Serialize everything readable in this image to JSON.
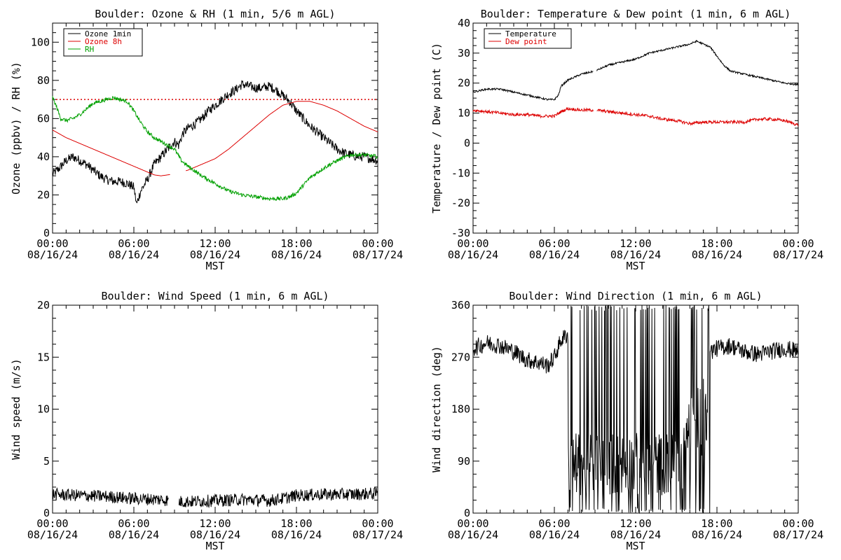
{
  "xlabel": "MST",
  "chart_data": [
    {
      "id": "ozone",
      "type": "line",
      "title": "Boulder: Ozone & RH (1 min, 5/6 m AGL)",
      "ylabel": "Ozone (ppbv) / RH (%)",
      "xlabel": "MST",
      "ylim": [
        0,
        110
      ],
      "yticks": [
        0,
        20,
        40,
        60,
        80,
        100
      ],
      "x_ticks": [
        {
          "time": "00:00",
          "date": "08/16/24"
        },
        {
          "time": "06:00",
          "date": "08/16/24"
        },
        {
          "time": "12:00",
          "date": "08/16/24"
        },
        {
          "time": "18:00",
          "date": "08/16/24"
        },
        {
          "time": "00:00",
          "date": "08/17/24"
        }
      ],
      "xlim_hours": [
        0,
        24
      ],
      "legend": "top-left",
      "reference_line": {
        "y": 70,
        "color": "#dd0000",
        "style": "dotted"
      },
      "series": [
        {
          "name": "Ozone 1min",
          "color": "#000000",
          "noise": 2.5,
          "x": [
            0,
            0.5,
            1,
            1.5,
            2,
            2.5,
            3,
            3.5,
            4,
            4.5,
            5,
            5.5,
            6,
            6.2,
            6.5,
            7,
            7.5,
            8,
            8.5,
            9,
            9.3,
            9.6,
            10,
            10.5,
            11,
            11.5,
            12,
            12.5,
            13,
            13.5,
            14,
            14.5,
            15,
            15.5,
            16,
            16.5,
            17,
            17.5,
            18,
            18.5,
            19,
            19.5,
            20,
            20.5,
            21,
            21.5,
            22,
            22.5,
            23,
            23.5,
            24
          ],
          "y": [
            31,
            34,
            38,
            40,
            38,
            36,
            33,
            30,
            28,
            27,
            27,
            26,
            24,
            15,
            22,
            28,
            36,
            40,
            44,
            48,
            46,
            52,
            55,
            57,
            60,
            64,
            67,
            70,
            73,
            75,
            78,
            77,
            76,
            76,
            77,
            75,
            72,
            69,
            64,
            60,
            56,
            53,
            50,
            47,
            44,
            42,
            41,
            40,
            40,
            39,
            38
          ]
        },
        {
          "name": "Ozone 8h",
          "color": "#dd0000",
          "noise": 0,
          "x": [
            0,
            1,
            2,
            3,
            4,
            5,
            6,
            7,
            7.5,
            8,
            9,
            10,
            11,
            12,
            13,
            14,
            15,
            16,
            17,
            18,
            19,
            20,
            21,
            22,
            23,
            24
          ],
          "y": [
            54,
            50,
            47,
            44,
            41,
            38,
            35,
            32,
            30.5,
            30,
            31,
            33,
            36,
            39,
            44,
            50,
            56,
            62,
            67,
            69,
            69,
            67,
            64,
            60,
            56,
            53
          ]
        },
        {
          "name": "RH",
          "color": "#00a000",
          "noise": 1,
          "x": [
            0,
            0.3,
            0.6,
            1,
            1.5,
            2,
            2.5,
            3,
            3.5,
            4,
            4.5,
            5,
            5.5,
            6,
            6.5,
            7,
            7.5,
            8,
            8.5,
            9,
            9.5,
            10,
            11,
            12,
            13,
            14,
            15,
            16,
            17,
            17.5,
            18,
            18.5,
            19,
            20,
            21,
            22,
            23,
            24
          ],
          "y": [
            71,
            66,
            60,
            59,
            60,
            62,
            65,
            68,
            69,
            70,
            71,
            70,
            69,
            64,
            58,
            53,
            50,
            48,
            46,
            44,
            38,
            35,
            30,
            26,
            22,
            20,
            19,
            18,
            18,
            19,
            21,
            25,
            29,
            34,
            38,
            41,
            41,
            40
          ]
        }
      ]
    },
    {
      "id": "temp",
      "type": "line",
      "title": "Boulder: Temperature & Dew point (1 min, 6 m AGL)",
      "ylabel": "Temperature / Dew point (C)",
      "xlabel": "MST",
      "ylim": [
        -30,
        40
      ],
      "yticks": [
        -30,
        -20,
        -10,
        0,
        10,
        20,
        30,
        40
      ],
      "x_ticks": [
        {
          "time": "00:00",
          "date": "08/16/24"
        },
        {
          "time": "06:00",
          "date": "08/16/24"
        },
        {
          "time": "12:00",
          "date": "08/16/24"
        },
        {
          "time": "18:00",
          "date": "08/16/24"
        },
        {
          "time": "00:00",
          "date": "08/17/24"
        }
      ],
      "xlim_hours": [
        0,
        24
      ],
      "legend": "top-left",
      "series": [
        {
          "name": "Temperature",
          "color": "#000000",
          "noise": 0.3,
          "x": [
            0,
            1,
            2,
            3,
            4,
            5,
            5.5,
            6,
            6.3,
            6.5,
            7,
            8,
            9,
            10,
            11,
            12,
            13,
            14,
            15,
            16,
            16.5,
            17,
            17.5,
            18,
            18.5,
            19,
            20,
            21,
            22,
            23,
            24
          ],
          "y": [
            17,
            18,
            18,
            17,
            16,
            15,
            14.5,
            14.5,
            16,
            19,
            21,
            23,
            24,
            26,
            27,
            28,
            30,
            31,
            32,
            33,
            34,
            33,
            32,
            29,
            26,
            24,
            23,
            22,
            21,
            20,
            19.5
          ]
        },
        {
          "name": "Dew point",
          "color": "#dd0000",
          "noise": 0.5,
          "x": [
            0,
            1,
            2,
            3,
            4,
            5,
            6,
            6.5,
            7,
            8,
            9,
            10,
            11,
            12,
            13,
            14,
            15,
            16,
            17,
            18,
            19,
            20,
            21,
            22,
            23,
            24
          ],
          "y": [
            11,
            10.5,
            10,
            9.5,
            9.5,
            9,
            9,
            10.5,
            11.5,
            11,
            11,
            10.5,
            10,
            9.5,
            9,
            8,
            7.5,
            6.5,
            7,
            7,
            7,
            7,
            8,
            8,
            7.5,
            6
          ]
        }
      ]
    },
    {
      "id": "wspd",
      "type": "line",
      "title": "Boulder: Wind Speed (1 min, 6 m AGL)",
      "ylabel": "Wind speed (m/s)",
      "xlabel": "MST",
      "ylim": [
        0,
        20
      ],
      "yticks": [
        0,
        5,
        10,
        15,
        20
      ],
      "x_ticks": [
        {
          "time": "00:00",
          "date": "08/16/24"
        },
        {
          "time": "06:00",
          "date": "08/16/24"
        },
        {
          "time": "12:00",
          "date": "08/16/24"
        },
        {
          "time": "18:00",
          "date": "08/16/24"
        },
        {
          "time": "00:00",
          "date": "08/17/24"
        }
      ],
      "xlim_hours": [
        0,
        24
      ],
      "series": [
        {
          "name": "",
          "color": "#000000",
          "noise": 0.6,
          "x": [
            0,
            2,
            4,
            6,
            8,
            8.7,
            9.3,
            10,
            12,
            14,
            16,
            17,
            18,
            20,
            22,
            24
          ],
          "y": [
            1.8,
            1.7,
            1.6,
            1.4,
            1.3,
            1.2,
            1.1,
            1.1,
            1.2,
            1.3,
            1.2,
            1.4,
            1.7,
            1.8,
            1.8,
            1.9
          ]
        }
      ]
    },
    {
      "id": "wdir",
      "type": "line",
      "title": "Boulder: Wind Direction (1 min, 6 m AGL)",
      "ylabel": "Wind direction (deg)",
      "xlabel": "MST",
      "ylim": [
        0,
        360
      ],
      "yticks": [
        0,
        90,
        180,
        270,
        360
      ],
      "x_ticks": [
        {
          "time": "00:00",
          "date": "08/16/24"
        },
        {
          "time": "06:00",
          "date": "08/16/24"
        },
        {
          "time": "12:00",
          "date": "08/16/24"
        },
        {
          "time": "18:00",
          "date": "08/16/24"
        },
        {
          "time": "00:00",
          "date": "08/17/24"
        }
      ],
      "xlim_hours": [
        0,
        24
      ],
      "series": [
        {
          "name": "",
          "color": "#000000",
          "noise": 15,
          "x": [
            0,
            1,
            2,
            3,
            4,
            5,
            5.5,
            6,
            6.5,
            7,
            17.5,
            18,
            19,
            20,
            21,
            22,
            23,
            24
          ],
          "y": [
            285,
            295,
            290,
            280,
            265,
            260,
            255,
            270,
            300,
            310,
            280,
            285,
            290,
            280,
            275,
            280,
            285,
            280
          ]
        }
      ]
    }
  ]
}
